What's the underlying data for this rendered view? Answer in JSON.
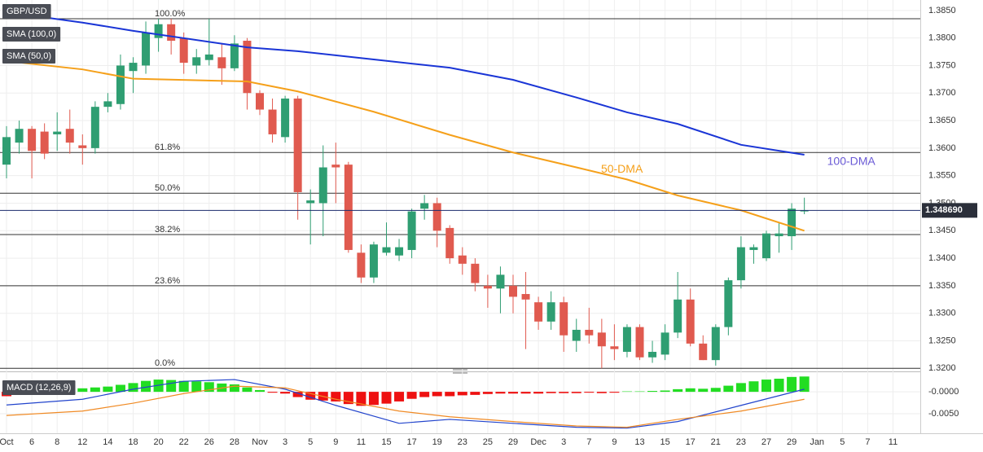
{
  "chart_data": [
    {
      "type": "candlestick",
      "title": "GBP/USD",
      "open": [
        1.357,
        1.361,
        1.3635,
        1.363,
        1.3625,
        1.3635,
        1.3605,
        1.36,
        1.3675,
        1.368,
        1.374,
        1.375,
        1.38,
        1.3825,
        1.38,
        1.375,
        1.376,
        1.3765,
        1.3745,
        1.3795,
        1.37,
        1.367,
        1.362,
        1.369,
        1.35,
        1.35,
        1.357,
        1.357,
        1.341,
        1.3365,
        1.341,
        1.3405,
        1.3415,
        1.349,
        1.35,
        1.3455,
        1.3405,
        1.339,
        1.335,
        1.3345,
        1.335,
        1.3335,
        1.332,
        1.3285,
        1.332,
        1.325,
        1.327,
        1.3265,
        1.324,
        1.323,
        1.3275,
        1.322,
        1.3225,
        1.3265,
        1.3325,
        1.3245,
        1.3215,
        1.3275,
        1.336,
        1.3415,
        1.34,
        1.344,
        1.344,
        1.3485
      ],
      "high": [
        1.364,
        1.365,
        1.364,
        1.3645,
        1.3665,
        1.367,
        1.3625,
        1.3685,
        1.37,
        1.377,
        1.3765,
        1.383,
        1.3835,
        1.3835,
        1.381,
        1.378,
        1.3835,
        1.379,
        1.3805,
        1.38,
        1.3705,
        1.369,
        1.3695,
        1.3695,
        1.3525,
        1.3605,
        1.361,
        1.3575,
        1.3425,
        1.343,
        1.3465,
        1.3435,
        1.349,
        1.3515,
        1.351,
        1.346,
        1.342,
        1.34,
        1.337,
        1.3385,
        1.337,
        1.3375,
        1.333,
        1.334,
        1.333,
        1.329,
        1.331,
        1.329,
        1.328,
        1.328,
        1.328,
        1.325,
        1.328,
        1.3375,
        1.3345,
        1.326,
        1.328,
        1.3365,
        1.344,
        1.3425,
        1.345,
        1.3465,
        1.35,
        1.351
      ],
      "low": [
        1.3545,
        1.359,
        1.3545,
        1.358,
        1.3595,
        1.359,
        1.357,
        1.359,
        1.3665,
        1.367,
        1.37,
        1.3735,
        1.3775,
        1.377,
        1.3735,
        1.3735,
        1.375,
        1.3715,
        1.374,
        1.367,
        1.366,
        1.361,
        1.361,
        1.347,
        1.3425,
        1.344,
        1.35,
        1.341,
        1.3355,
        1.3355,
        1.3405,
        1.3395,
        1.34,
        1.347,
        1.342,
        1.339,
        1.337,
        1.334,
        1.331,
        1.33,
        1.33,
        1.3235,
        1.327,
        1.327,
        1.323,
        1.323,
        1.3245,
        1.32,
        1.3215,
        1.322,
        1.3215,
        1.321,
        1.3215,
        1.3255,
        1.324,
        1.3215,
        1.3205,
        1.326,
        1.3345,
        1.339,
        1.3395,
        1.341,
        1.3415,
        1.348
      ],
      "close": [
        1.362,
        1.3635,
        1.3595,
        1.359,
        1.363,
        1.361,
        1.36,
        1.3675,
        1.3685,
        1.375,
        1.3755,
        1.381,
        1.3825,
        1.3795,
        1.3755,
        1.3765,
        1.377,
        1.3745,
        1.379,
        1.37,
        1.367,
        1.3625,
        1.369,
        1.352,
        1.3505,
        1.3565,
        1.3565,
        1.3415,
        1.3365,
        1.3425,
        1.342,
        1.342,
        1.3485,
        1.35,
        1.345,
        1.34,
        1.339,
        1.3355,
        1.3345,
        1.337,
        1.333,
        1.3325,
        1.3285,
        1.332,
        1.326,
        1.327,
        1.326,
        1.324,
        1.3235,
        1.3275,
        1.322,
        1.323,
        1.3265,
        1.3325,
        1.3245,
        1.3215,
        1.3275,
        1.336,
        1.342,
        1.342,
        1.3445,
        1.3445,
        1.349,
        1.34869
      ],
      "up_color": "#2f9e72",
      "down_color": "#e05a4f",
      "series": [
        {
          "name": "SMA (100,0)",
          "color": "#1a35d6",
          "x": [
            0,
            6,
            10,
            19,
            23,
            29,
            35,
            40,
            45,
            49,
            53,
            58,
            63
          ],
          "values": [
            1.3847,
            1.3828,
            1.3813,
            1.3783,
            1.3776,
            1.3761,
            1.3746,
            1.3724,
            1.3692,
            1.3665,
            1.3644,
            1.3606,
            1.3588
          ],
          "annotation": "100-DMA",
          "annotation_color": "#6a5ad6"
        },
        {
          "name": "SMA (50,0)",
          "color": "#f5a01a",
          "x": [
            0,
            6,
            10,
            19,
            23,
            29,
            35,
            40,
            45,
            49,
            53,
            58,
            63
          ],
          "values": [
            1.3758,
            1.3743,
            1.3726,
            1.3721,
            1.3703,
            1.3666,
            1.3624,
            1.3592,
            1.3565,
            1.3543,
            1.3514,
            1.3487,
            1.345
          ],
          "annotation": "50-DMA",
          "annotation_color": "#f5a01a"
        }
      ],
      "fib_levels": [
        {
          "label": "100.0%",
          "value": 1.3835
        },
        {
          "label": "61.8%",
          "value": 1.3592
        },
        {
          "label": "50.0%",
          "value": 1.3518
        },
        {
          "label": "38.2%",
          "value": 1.3443
        },
        {
          "label": "23.6%",
          "value": 1.335
        },
        {
          "label": "0.0%",
          "value": 1.32
        }
      ],
      "last_price": {
        "value": 1.34869,
        "label": "1.348690"
      },
      "ylim": [
        1.3196,
        1.3869
      ],
      "yticks": [
        {
          "value": 1.385,
          "label": "1.3850"
        },
        {
          "value": 1.38,
          "label": "1.3800"
        },
        {
          "value": 1.375,
          "label": "1.3750"
        },
        {
          "value": 1.37,
          "label": "1.3700"
        },
        {
          "value": 1.365,
          "label": "1.3650"
        },
        {
          "value": 1.36,
          "label": "1.3600"
        },
        {
          "value": 1.355,
          "label": "1.3550"
        },
        {
          "value": 1.35,
          "label": "1.3500"
        },
        {
          "value": 1.345,
          "label": "1.3450"
        },
        {
          "value": 1.34,
          "label": "1.3400"
        },
        {
          "value": 1.335,
          "label": "1.3350"
        },
        {
          "value": 1.33,
          "label": "1.3300"
        },
        {
          "value": 1.325,
          "label": "1.3250"
        },
        {
          "value": 1.32,
          "label": "1.3200"
        }
      ],
      "x_tick_labels": [
        "Oct",
        "6",
        "8",
        "12",
        "14",
        "18",
        "20",
        "22",
        "26",
        "28",
        "Nov",
        "3",
        "5",
        "9",
        "11",
        "15",
        "17",
        "19",
        "23",
        "25",
        "29",
        "Dec",
        "3",
        "7",
        "9",
        "13",
        "15",
        "17",
        "21",
        "23",
        "27",
        "29",
        "Jan",
        "5",
        "7",
        "11"
      ],
      "grid": true
    },
    {
      "type": "macd",
      "title": "MACD (12,26,9)",
      "histogram": [
        -0.001,
        0.0002,
        0.0004,
        0.0005,
        0.0006,
        0.0008,
        0.0008,
        0.001,
        0.0012,
        0.0016,
        0.002,
        0.0025,
        0.0028,
        0.0027,
        0.0025,
        0.0024,
        0.0022,
        0.0019,
        0.0017,
        0.001,
        0.0004,
        -0.0002,
        -0.0004,
        -0.0012,
        -0.0018,
        -0.002,
        -0.0022,
        -0.0028,
        -0.0032,
        -0.003,
        -0.0027,
        -0.0022,
        -0.0016,
        -0.0012,
        -0.001,
        -0.001,
        -0.0008,
        -0.0007,
        -0.0005,
        -0.0004,
        -0.0004,
        -0.0004,
        -0.0004,
        -0.0003,
        -0.0003,
        -0.0003,
        -0.0002,
        -0.0003,
        -0.0002,
        0.0001,
        0.0001,
        0.0002,
        0.0003,
        0.0006,
        0.0008,
        0.0007,
        0.0009,
        0.0014,
        0.002,
        0.0024,
        0.0028,
        0.003,
        0.0034,
        0.0035
      ],
      "positive_color": "#22dd22",
      "negative_color": "#ee1111",
      "series": [
        {
          "color": "#2244cc",
          "x": [
            0,
            6,
            10,
            14,
            18,
            22,
            26,
            31,
            35,
            40,
            45,
            49,
            53,
            58,
            63
          ],
          "values": [
            -0.003,
            -0.0017,
            0.0006,
            0.0024,
            0.0028,
            0.0006,
            -0.0031,
            -0.0072,
            -0.0063,
            -0.0072,
            -0.0081,
            -0.0083,
            -0.0068,
            -0.0031,
            0.0006
          ]
        },
        {
          "color": "#f08a24",
          "x": [
            0,
            6,
            10,
            14,
            18,
            22,
            26,
            31,
            35,
            40,
            45,
            49,
            53,
            58,
            63
          ],
          "values": [
            -0.0054,
            -0.0044,
            -0.0026,
            -0.0004,
            0.0013,
            0.0009,
            -0.0017,
            -0.0044,
            -0.0057,
            -0.0068,
            -0.0078,
            -0.0081,
            -0.0063,
            -0.0044,
            -0.0017
          ]
        }
      ],
      "ylim": [
        -0.0091,
        0.0043
      ],
      "yticks": [
        {
          "value": 0,
          "label": "-0.0000"
        },
        {
          "value": -0.005,
          "label": "-0.0050"
        }
      ]
    }
  ]
}
